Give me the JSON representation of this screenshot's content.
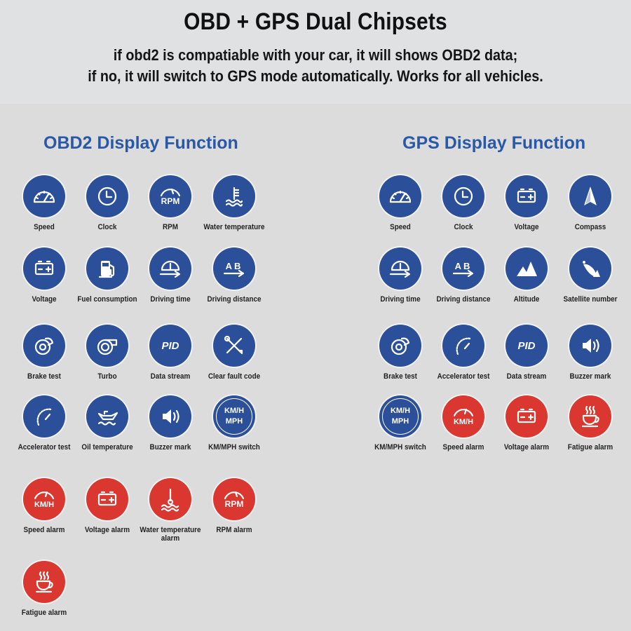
{
  "header": {
    "title": "OBD + GPS Dual Chipsets",
    "subtitle_line1": "if obd2 is compatiable with your car, it will shows OBD2 data;",
    "subtitle_line2": "if no, it will switch to GPS mode automatically. Works for all vehicles."
  },
  "colors": {
    "blue": "#2b4f98",
    "red": "#d9372f",
    "heading": "#2a58a8",
    "background": "#dcdcdc"
  },
  "obd2": {
    "title": "OBD2 Display Function",
    "items": [
      {
        "label": "Speed",
        "icon": "speedometer-icon",
        "color": "blue"
      },
      {
        "label": "Clock",
        "icon": "clock-icon",
        "color": "blue"
      },
      {
        "label": "RPM",
        "icon": "rpm-gauge-icon",
        "color": "blue"
      },
      {
        "label": "Water temperature",
        "icon": "coolant-temperature-icon",
        "color": "blue"
      },
      {
        "label": "Voltage",
        "icon": "battery-icon",
        "color": "blue"
      },
      {
        "label": "Fuel consumption",
        "icon": "fuel-pump-icon",
        "color": "blue"
      },
      {
        "label": "Driving time",
        "icon": "gauge-arrow-icon",
        "color": "blue"
      },
      {
        "label": "Driving distance",
        "icon": "a-to-b-arrow-icon",
        "color": "blue"
      },
      {
        "label": "Brake test",
        "icon": "brake-disc-icon",
        "color": "blue"
      },
      {
        "label": "Turbo",
        "icon": "turbo-icon",
        "color": "blue"
      },
      {
        "label": "Data stream",
        "icon": "pid-icon",
        "color": "blue",
        "text": "PID"
      },
      {
        "label": "Clear fault code",
        "icon": "wrench-screwdriver-icon",
        "color": "blue"
      },
      {
        "label": "Accelerator test",
        "icon": "accelerator-gauge-icon",
        "color": "blue"
      },
      {
        "label": "Oil temperature",
        "icon": "oil-can-icon",
        "color": "blue"
      },
      {
        "label": "Buzzer mark",
        "icon": "speaker-icon",
        "color": "blue"
      },
      {
        "label": "KM/MPH switch",
        "icon": "kmh-mph-icon",
        "color": "blue",
        "text1": "KM/H",
        "text2": "MPH"
      },
      {
        "label": "Speed alarm",
        "icon": "kmh-gauge-icon",
        "color": "red",
        "text": "KM/H"
      },
      {
        "label": "Voltage alarm",
        "icon": "battery-icon",
        "color": "red"
      },
      {
        "label": "Water temperature alarm",
        "icon": "thermometer-water-icon",
        "color": "red"
      },
      {
        "label": "RPM alarm",
        "icon": "rpm-gauge-icon",
        "color": "red"
      },
      {
        "label": "Fatigue alarm",
        "icon": "coffee-cup-icon",
        "color": "red"
      }
    ]
  },
  "gps": {
    "title": "GPS Display Function",
    "items": [
      {
        "label": "Speed",
        "icon": "speedometer-icon",
        "color": "blue"
      },
      {
        "label": "Clock",
        "icon": "clock-icon",
        "color": "blue"
      },
      {
        "label": "Voltage",
        "icon": "battery-icon",
        "color": "blue"
      },
      {
        "label": "Compass",
        "icon": "compass-arrow-icon",
        "color": "blue"
      },
      {
        "label": "Driving time",
        "icon": "gauge-arrow-icon",
        "color": "blue"
      },
      {
        "label": "Driving distance",
        "icon": "a-to-b-arrow-icon",
        "color": "blue"
      },
      {
        "label": "Altitude",
        "icon": "mountain-icon",
        "color": "blue"
      },
      {
        "label": "Satellite number",
        "icon": "satellite-dish-icon",
        "color": "blue"
      },
      {
        "label": "Brake test",
        "icon": "brake-disc-icon",
        "color": "blue"
      },
      {
        "label": "Accelerator test",
        "icon": "accelerator-gauge-icon",
        "color": "blue"
      },
      {
        "label": "Data stream",
        "icon": "pid-icon",
        "color": "blue",
        "text": "PID"
      },
      {
        "label": "Buzzer mark",
        "icon": "speaker-icon",
        "color": "blue"
      },
      {
        "label": "KM/MPH switch",
        "icon": "kmh-mph-icon",
        "color": "blue",
        "text1": "KM/H",
        "text2": "MPH"
      },
      {
        "label": "Speed alarm",
        "icon": "kmh-gauge-icon",
        "color": "red",
        "text": "KM/H"
      },
      {
        "label": "Voltage alarm",
        "icon": "battery-icon",
        "color": "red"
      },
      {
        "label": "Fatigue alarm",
        "icon": "coffee-cup-icon",
        "color": "red"
      }
    ]
  }
}
